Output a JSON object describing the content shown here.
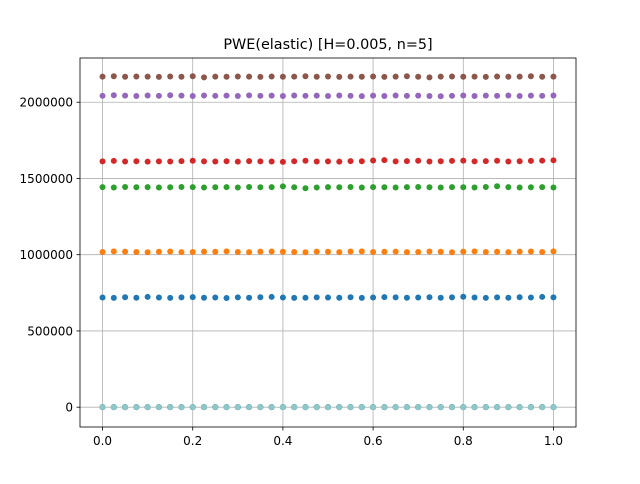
{
  "chart_data": {
    "type": "scatter",
    "title": "PWE(elastic) [H=0.005, n=5]",
    "xlabel": "",
    "ylabel": "",
    "xlim": [
      -0.05,
      1.05
    ],
    "ylim": [
      -130000,
      2290000
    ],
    "x_ticks": [
      0.0,
      0.2,
      0.4,
      0.6,
      0.8,
      1.0
    ],
    "x_tick_labels": [
      "0.0",
      "0.2",
      "0.4",
      "0.6",
      "0.8",
      "1.0"
    ],
    "y_ticks": [
      0,
      500000,
      1000000,
      1500000,
      2000000
    ],
    "y_tick_labels": [
      "0",
      "500000",
      "1000000",
      "1500000",
      "2000000"
    ],
    "grid": true,
    "legend": "none",
    "x": [
      0.0,
      0.025,
      0.05,
      0.075,
      0.1,
      0.125,
      0.15,
      0.175,
      0.2,
      0.225,
      0.25,
      0.275,
      0.3,
      0.325,
      0.35,
      0.375,
      0.4,
      0.425,
      0.45,
      0.475,
      0.5,
      0.525,
      0.55,
      0.575,
      0.6,
      0.625,
      0.65,
      0.675,
      0.7,
      0.725,
      0.75,
      0.775,
      0.8,
      0.825,
      0.85,
      0.875,
      0.9,
      0.925,
      0.95,
      0.975,
      1.0
    ],
    "series": [
      {
        "color": "#1f77b4",
        "values": [
          719000,
          717000,
          721000,
          718000,
          723000,
          719000,
          717000,
          720000,
          722000,
          718000,
          719000,
          716000,
          720000,
          718000,
          721000,
          723000,
          719000,
          717000,
          718000,
          720000,
          719000,
          718000,
          721000,
          717000,
          719000,
          722000,
          720000,
          718000,
          719000,
          721000,
          718000,
          720000,
          724000,
          719000,
          717000,
          720000,
          718000,
          721000,
          719000,
          723000,
          720000
        ]
      },
      {
        "color": "#ff7f0e",
        "values": [
          1018000,
          1022000,
          1020000,
          1018000,
          1016000,
          1019000,
          1021000,
          1017000,
          1018000,
          1020000,
          1019000,
          1022000,
          1018000,
          1017000,
          1020000,
          1021000,
          1019000,
          1018000,
          1016000,
          1020000,
          1019000,
          1017000,
          1021000,
          1022000,
          1018000,
          1019000,
          1020000,
          1017000,
          1018000,
          1021000,
          1019000,
          1016000,
          1020000,
          1022000,
          1018000,
          1019000,
          1017000,
          1020000,
          1021000,
          1018000,
          1022000
        ]
      },
      {
        "color": "#2ca02c",
        "values": [
          1443000,
          1441000,
          1444000,
          1442000,
          1443000,
          1441000,
          1442000,
          1444000,
          1443000,
          1441000,
          1442000,
          1443000,
          1441000,
          1444000,
          1442000,
          1443000,
          1448000,
          1442000,
          1436000,
          1441000,
          1443000,
          1442000,
          1444000,
          1441000,
          1443000,
          1442000,
          1441000,
          1443000,
          1444000,
          1442000,
          1441000,
          1443000,
          1442000,
          1441000,
          1444000,
          1449000,
          1443000,
          1441000,
          1442000,
          1443000,
          1441000
        ]
      },
      {
        "color": "#d62728",
        "values": [
          1612000,
          1615000,
          1611000,
          1613000,
          1610000,
          1612000,
          1611000,
          1614000,
          1616000,
          1612000,
          1611000,
          1613000,
          1610000,
          1614000,
          1612000,
          1611000,
          1609000,
          1613000,
          1616000,
          1611000,
          1612000,
          1610000,
          1614000,
          1613000,
          1618000,
          1620000,
          1612000,
          1614000,
          1616000,
          1611000,
          1613000,
          1615000,
          1617000,
          1612000,
          1614000,
          1616000,
          1611000,
          1613000,
          1615000,
          1617000,
          1619000
        ]
      },
      {
        "color": "#9467bd",
        "values": [
          2042000,
          2046000,
          2043000,
          2041000,
          2044000,
          2042000,
          2046000,
          2043000,
          2041000,
          2044000,
          2042000,
          2043000,
          2041000,
          2045000,
          2042000,
          2043000,
          2041000,
          2044000,
          2042000,
          2043000,
          2041000,
          2044000,
          2042000,
          2040000,
          2043000,
          2041000,
          2044000,
          2042000,
          2043000,
          2041000,
          2039000,
          2042000,
          2044000,
          2041000,
          2043000,
          2042000,
          2044000,
          2041000,
          2043000,
          2042000,
          2044000
        ]
      },
      {
        "color": "#8c564b",
        "values": [
          2168000,
          2170000,
          2167000,
          2169000,
          2168000,
          2166000,
          2169000,
          2167000,
          2170000,
          2163000,
          2168000,
          2167000,
          2169000,
          2168000,
          2166000,
          2169000,
          2167000,
          2168000,
          2170000,
          2167000,
          2169000,
          2166000,
          2168000,
          2167000,
          2169000,
          2166000,
          2168000,
          2170000,
          2167000,
          2163000,
          2168000,
          2169000,
          2167000,
          2168000,
          2166000,
          2169000,
          2167000,
          2168000,
          2170000,
          2167000,
          2168000
        ]
      },
      {
        "color": "#e377c2",
        "values": [
          0,
          0,
          0,
          0,
          0,
          0,
          0,
          0,
          0,
          0,
          0,
          0,
          0,
          0,
          0,
          0,
          0,
          0,
          0,
          0,
          0,
          0,
          0,
          0,
          0,
          0,
          0,
          0,
          0,
          0,
          0,
          0,
          0,
          0,
          0,
          0,
          0,
          0,
          0,
          0,
          0
        ]
      },
      {
        "color": "#7f7f7f",
        "values": [
          0,
          0,
          0,
          0,
          0,
          0,
          0,
          0,
          0,
          0,
          0,
          0,
          0,
          0,
          0,
          0,
          0,
          0,
          0,
          0,
          0,
          0,
          0,
          0,
          0,
          0,
          0,
          0,
          0,
          0,
          0,
          0,
          0,
          0,
          0,
          0,
          0,
          0,
          0,
          0,
          0
        ]
      },
      {
        "color": "#bcbd22",
        "values": [
          0,
          0,
          0,
          0,
          0,
          0,
          0,
          0,
          0,
          0,
          0,
          0,
          0,
          0,
          0,
          0,
          0,
          0,
          0,
          0,
          0,
          0,
          0,
          0,
          0,
          0,
          0,
          0,
          0,
          0,
          0,
          0,
          0,
          0,
          0,
          0,
          0,
          0,
          0,
          0,
          0
        ]
      },
      {
        "color": "#17becf",
        "values": [
          0,
          0,
          0,
          0,
          0,
          0,
          0,
          0,
          0,
          0,
          0,
          0,
          0,
          0,
          0,
          0,
          0,
          0,
          0,
          0,
          0,
          0,
          0,
          0,
          0,
          0,
          0,
          0,
          0,
          0,
          0,
          0,
          0,
          0,
          0,
          0,
          0,
          0,
          0,
          0,
          0
        ]
      },
      {
        "color": "#1f77b4",
        "values": [
          0,
          0,
          0,
          0,
          0,
          0,
          0,
          0,
          0,
          0,
          0,
          0,
          0,
          0,
          0,
          0,
          0,
          0,
          0,
          0,
          0,
          0,
          0,
          0,
          0,
          0,
          0,
          0,
          0,
          0,
          0,
          0,
          0,
          0,
          0,
          0,
          0,
          0,
          0,
          0,
          0
        ]
      },
      {
        "color": "#8fc7c9",
        "values": [
          0,
          0,
          0,
          0,
          0,
          0,
          0,
          0,
          0,
          0,
          0,
          0,
          0,
          0,
          0,
          0,
          0,
          0,
          0,
          0,
          0,
          0,
          0,
          0,
          0,
          0,
          0,
          0,
          0,
          0,
          0,
          0,
          0,
          0,
          0,
          0,
          0,
          0,
          0,
          0,
          0
        ]
      }
    ]
  }
}
